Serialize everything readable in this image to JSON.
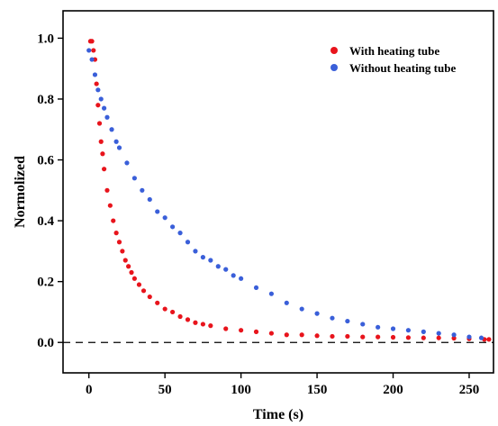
{
  "chart_data": {
    "type": "scatter",
    "xlabel": "Time (s)",
    "ylabel": "Normolized",
    "xlim": [
      -17,
      266
    ],
    "ylim": [
      -0.1,
      1.09
    ],
    "xticks": [
      "0",
      "50",
      "100",
      "150",
      "200",
      "250"
    ],
    "yticks": [
      "0.0",
      "0.2",
      "0.4",
      "0.6",
      "0.8",
      "1.0"
    ],
    "legend_position": "top-right",
    "reference_line": {
      "y": 0.0,
      "style": "dashed"
    },
    "series": [
      {
        "name": "With heating tube",
        "color": "#e8141c",
        "x": [
          1,
          2,
          3,
          4,
          5,
          6,
          7,
          8,
          9,
          10,
          12,
          14,
          16,
          18,
          20,
          22,
          24,
          26,
          28,
          30,
          33,
          36,
          40,
          45,
          50,
          55,
          60,
          65,
          70,
          75,
          80,
          90,
          100,
          110,
          120,
          130,
          140,
          150,
          160,
          170,
          180,
          190,
          200,
          210,
          220,
          230,
          240,
          250,
          260,
          263
        ],
        "y": [
          0.99,
          0.99,
          0.96,
          0.93,
          0.85,
          0.78,
          0.72,
          0.66,
          0.62,
          0.57,
          0.5,
          0.45,
          0.4,
          0.36,
          0.33,
          0.3,
          0.27,
          0.25,
          0.23,
          0.21,
          0.19,
          0.17,
          0.15,
          0.13,
          0.11,
          0.1,
          0.085,
          0.075,
          0.065,
          0.06,
          0.055,
          0.045,
          0.04,
          0.035,
          0.03,
          0.025,
          0.025,
          0.022,
          0.02,
          0.02,
          0.018,
          0.018,
          0.017,
          0.016,
          0.015,
          0.015,
          0.014,
          0.012,
          0.01,
          0.01
        ]
      },
      {
        "name": "Without heating tube",
        "color": "#3a5fd9",
        "x": [
          0,
          2,
          4,
          6,
          8,
          10,
          12,
          15,
          18,
          20,
          25,
          30,
          35,
          40,
          45,
          50,
          55,
          60,
          65,
          70,
          75,
          80,
          85,
          90,
          95,
          100,
          110,
          120,
          130,
          140,
          150,
          160,
          170,
          180,
          190,
          200,
          210,
          220,
          230,
          240,
          250,
          258
        ],
        "y": [
          0.96,
          0.93,
          0.88,
          0.83,
          0.8,
          0.77,
          0.74,
          0.7,
          0.66,
          0.64,
          0.59,
          0.54,
          0.5,
          0.47,
          0.43,
          0.41,
          0.38,
          0.36,
          0.33,
          0.3,
          0.28,
          0.27,
          0.25,
          0.24,
          0.22,
          0.21,
          0.18,
          0.16,
          0.13,
          0.11,
          0.095,
          0.08,
          0.07,
          0.06,
          0.05,
          0.045,
          0.04,
          0.035,
          0.03,
          0.025,
          0.018,
          0.015
        ]
      }
    ]
  }
}
